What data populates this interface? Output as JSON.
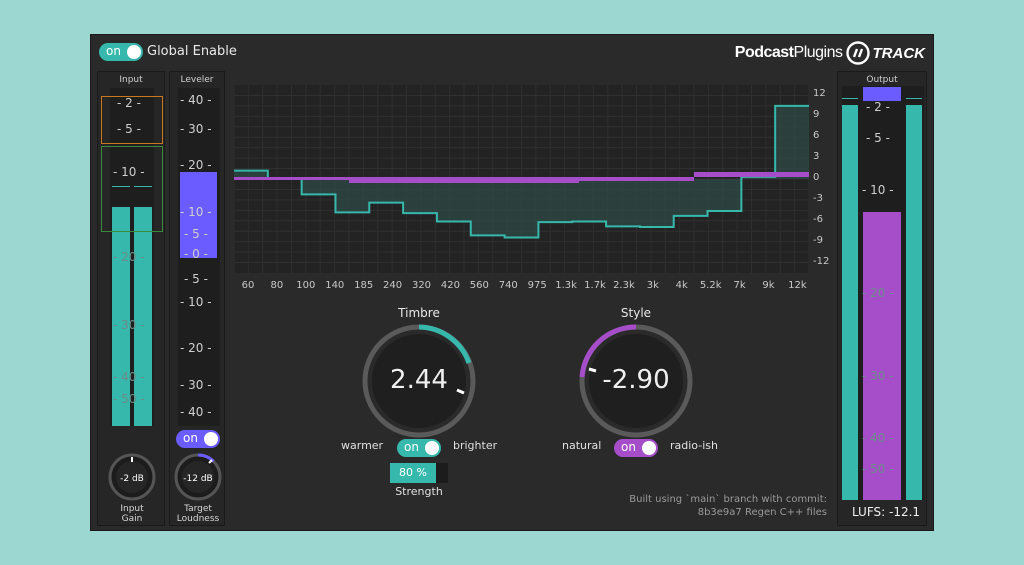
{
  "header": {
    "global_toggle": "on",
    "global_label": "Global Enable",
    "logo_left": "Podcast",
    "logo_right": "Plugins",
    "logo_product": "TRACK"
  },
  "input": {
    "title": "Input",
    "ticks": [
      "- 2 -",
      "- 5 -",
      "- 10 -",
      "- 20 -",
      "- 30 -",
      "- 40 -",
      "- 50 -"
    ],
    "knob_value": "-2 dB",
    "knob_label_1": "Input",
    "knob_label_2": "Gain"
  },
  "leveler": {
    "title": "Leveler",
    "ticks": [
      "- 40 -",
      "- 30 -",
      "- 20 -",
      "- 10 -",
      "- 5 -",
      "- 0 -",
      "- 5 -",
      "- 10 -",
      "- 20 -",
      "- 30 -",
      "- 40 -"
    ],
    "toggle": "on",
    "knob_value": "-12 dB",
    "knob_label_1": "Target",
    "knob_label_2": "Loudness"
  },
  "eq": {
    "freq_labels": [
      "60",
      "80",
      "100",
      "140",
      "185",
      "240",
      "320",
      "420",
      "560",
      "740",
      "975",
      "1.3k",
      "1.7k",
      "2.3k",
      "3k",
      "4k",
      "5.2k",
      "7k",
      "9k",
      "12k"
    ],
    "db_labels": [
      "12",
      "9",
      "6",
      "3",
      "0",
      "-3",
      "-6",
      "-9",
      "-12"
    ],
    "curve_db": [
      1.2,
      0.1,
      -2.2,
      -4.8,
      -3.4,
      -4.9,
      -6.1,
      -8.1,
      -8.4,
      -6.2,
      -6.1,
      -6.8,
      -6.9,
      -5.3,
      -4.6,
      0.3,
      10.5
    ]
  },
  "timbre": {
    "title": "Timbre",
    "value": "2.44",
    "left_label": "warmer",
    "right_label": "brighter",
    "toggle": "on",
    "strength_value": "80 %",
    "strength_fraction": 0.8,
    "strength_label": "Strength"
  },
  "style": {
    "title": "Style",
    "value": "-2.90",
    "left_label": "natural",
    "right_label": "radio-ish",
    "toggle": "on"
  },
  "footer": {
    "line1": "Built using `main` branch with commit:",
    "line2": "8b3e9a7 Regen C++ files"
  },
  "output": {
    "title": "Output",
    "ticks": [
      "- 2 -",
      "- 5 -",
      "- 10 -",
      "- 20 -",
      "- 30 -",
      "- 40 -",
      "- 50 -"
    ],
    "lufs": "LUFS: -12.1"
  },
  "colors": {
    "teal": "#37b8ac",
    "blue": "#6a5cff",
    "purple": "#a64ec9",
    "orange": "#c8771c",
    "green": "#3c8a3c"
  }
}
